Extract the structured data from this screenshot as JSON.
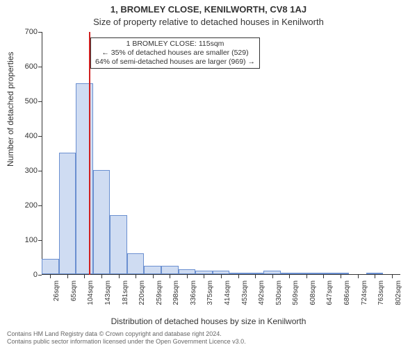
{
  "titles": {
    "line1": "1, BROMLEY CLOSE, KENILWORTH, CV8 1AJ",
    "line2": "Size of property relative to detached houses in Kenilworth"
  },
  "axes": {
    "ylabel": "Number of detached properties",
    "xlabel": "Distribution of detached houses by size in Kenilworth",
    "ylim": [
      0,
      700
    ],
    "ytick_step": 100,
    "label_fontsize": 12,
    "tick_fontsize": 11,
    "axis_color": "#333333"
  },
  "chart": {
    "type": "histogram",
    "background_color": "#ffffff",
    "bar_fill": "#cfdcf2",
    "bar_stroke": "#6a8fd0",
    "reference_line_color": "#d02020",
    "reference_value": 115,
    "categories": [
      "26sqm",
      "65sqm",
      "104sqm",
      "143sqm",
      "181sqm",
      "220sqm",
      "259sqm",
      "298sqm",
      "336sqm",
      "375sqm",
      "414sqm",
      "453sqm",
      "492sqm",
      "530sqm",
      "569sqm",
      "608sqm",
      "647sqm",
      "686sqm",
      "724sqm",
      "763sqm",
      "802sqm"
    ],
    "values": [
      45,
      350,
      550,
      300,
      170,
      60,
      25,
      25,
      15,
      10,
      10,
      5,
      3,
      10,
      5,
      3,
      2,
      2,
      0,
      2,
      0
    ]
  },
  "annotation": {
    "line1": "1 BROMLEY CLOSE: 115sqm",
    "line2": "← 35% of detached houses are smaller (529)",
    "line3": "64% of semi-detached houses are larger (969) →",
    "border_color": "#333333",
    "background": "#ffffff",
    "fontsize": 10.5
  },
  "footer": {
    "line1": "Contains HM Land Registry data © Crown copyright and database right 2024.",
    "line2": "Contains public sector information licensed under the Open Government Licence v3.0.",
    "color": "#666666",
    "fontsize": 9
  }
}
